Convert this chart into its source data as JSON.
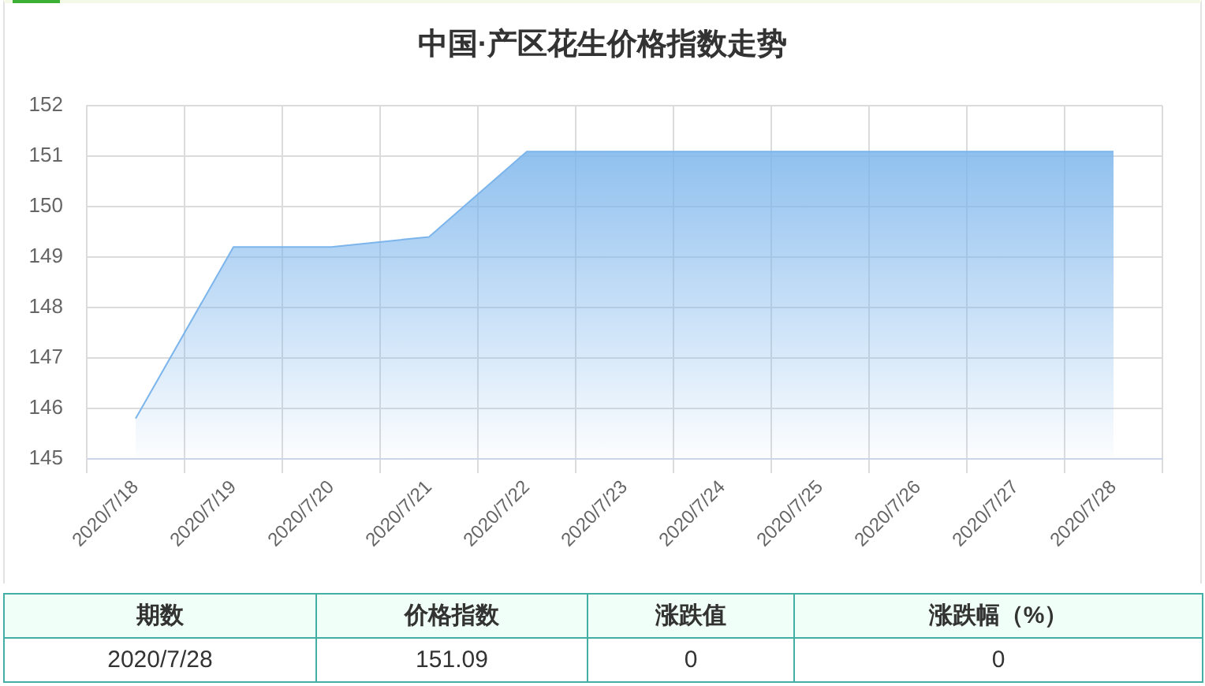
{
  "chart_data": {
    "type": "area",
    "title": "中国·产区花生价格指数走势",
    "categories": [
      "2020/7/18",
      "2020/7/19",
      "2020/7/20",
      "2020/7/21",
      "2020/7/22",
      "2020/7/23",
      "2020/7/24",
      "2020/7/25",
      "2020/7/26",
      "2020/7/27",
      "2020/7/28"
    ],
    "values": [
      145.8,
      149.2,
      149.2,
      149.4,
      151.09,
      151.09,
      151.09,
      151.09,
      151.09,
      151.09,
      151.09
    ],
    "color": "#7cb5ec",
    "ylim": [
      145,
      152
    ],
    "yticks": [
      145,
      146,
      147,
      148,
      149,
      150,
      151,
      152
    ],
    "grid": true,
    "annotations": [
      "期数",
      "价格指数",
      "涨跌值",
      "涨跌幅（%）",
      "2020/7/28",
      "151.09",
      "0",
      "0"
    ]
  }
}
